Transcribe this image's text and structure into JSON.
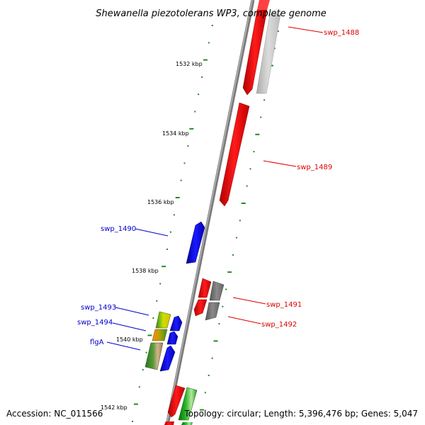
{
  "title": "Shewanella piezotolerans WP3, complete genome",
  "footer": {
    "accession": "Accession: NC_011566",
    "topology": "Topology: circular; Length: 5,396,476 bp; Genes: 5,047"
  },
  "colors": {
    "forward_strand": "#ff0000",
    "reverse_strand": "#0000ff",
    "grey_feature": "#808080",
    "tick": "#228b22",
    "label_red": "#dd0000",
    "label_blue": "#0000cc"
  },
  "scale_labels": [
    "1532 kbp",
    "1534 kbp",
    "1536 kbp",
    "1538 kbp",
    "1540 kbp",
    "1542 kbp"
  ],
  "gene_labels": {
    "swp_1488": "swp_1488",
    "swp_1489": "swp_1489",
    "swp_1490": "swp_1490",
    "swp_1491": "swp_1491",
    "swp_1492": "swp_1492",
    "swp_1493": "swp_1493",
    "swp_1494": "swp_1494",
    "flgA": "flgA"
  }
}
